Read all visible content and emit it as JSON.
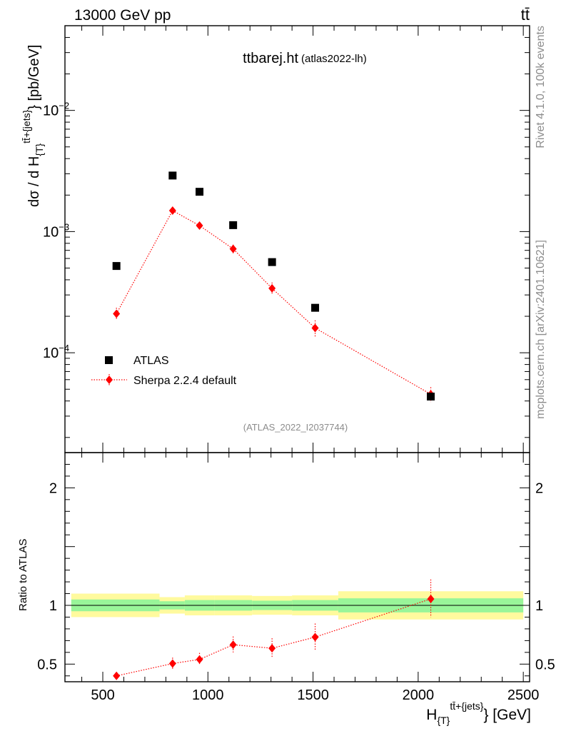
{
  "header": {
    "energy_label": "13000 GeV pp",
    "process_label": "tt̄"
  },
  "side": {
    "rivet_label": "Rivet 4.1.0,  100k events",
    "site_label": "mcplots.cern.ch [arXiv:2401.10621]"
  },
  "chart_data": [
    {
      "type": "scatter",
      "title": "ttbarej.ht",
      "subtitle": "(atlas2022-lh)",
      "watermark": "(ATLAS_2022_I2037744)",
      "ylabel": "dσ / d H_{T}^{tt̄+{jets}} [pb/GeV]",
      "yscale": "log",
      "ylim": [
        1.5e-05,
        0.05
      ],
      "xlim": [
        320,
        2530
      ],
      "y_ticks": [
        {
          "value": 0.01,
          "base": "10",
          "exp": "−2"
        },
        {
          "value": 0.001,
          "base": "10",
          "exp": "−3"
        },
        {
          "value": 0.0001,
          "base": "10",
          "exp": "−4"
        }
      ],
      "legend": {
        "position": "bottom-left",
        "entries": [
          "ATLAS",
          "Sherpa 2.2.4 default"
        ]
      },
      "series": [
        {
          "name": "ATLAS",
          "color": "#000000",
          "marker": "square",
          "x": [
            565,
            832,
            960,
            1120,
            1305,
            1510,
            2060
          ],
          "y": [
            0.00052,
            0.0029,
            0.00213,
            0.00113,
            0.00056,
            0.000235,
            4.35e-05
          ]
        },
        {
          "name": "Sherpa 2.2.4 default",
          "color": "#ff0000",
          "marker": "diamond",
          "line": "dotted",
          "x": [
            565,
            832,
            960,
            1120,
            1305,
            1510,
            2060
          ],
          "y": [
            0.00021,
            0.00149,
            0.00112,
            0.00072,
            0.00034,
            0.00016,
            4.55e-05
          ],
          "y_err_low": [
            0.00019,
            0.00141,
            0.00106,
            0.00066,
            0.0003,
            0.000135,
            3.9e-05
          ],
          "y_err_high": [
            0.000235,
            0.00157,
            0.00119,
            0.00078,
            0.00038,
            0.000185,
            5.2e-05
          ]
        }
      ]
    },
    {
      "type": "scatter",
      "ylabel": "Ratio to ATLAS",
      "xlabel": "H_{T}^{tt̄+{jets}} [GeV]",
      "ylim": [
        0.35,
        2.3
      ],
      "xlim": [
        320,
        2530
      ],
      "x_ticks": [
        500,
        1000,
        1500,
        2000,
        2500
      ],
      "y_ticks": [
        {
          "value": 0.5,
          "label": "0.5"
        },
        {
          "value": 1,
          "label": "1"
        },
        {
          "value": 2,
          "label": "2"
        }
      ],
      "bands": [
        {
          "x_low": 350,
          "x_high": 770,
          "inner": [
            0.95,
            1.05
          ],
          "outer": [
            0.9,
            1.1
          ]
        },
        {
          "x_low": 770,
          "x_high": 890,
          "inner": [
            0.965,
            1.035
          ],
          "outer": [
            0.93,
            1.07
          ]
        },
        {
          "x_low": 890,
          "x_high": 1030,
          "inner": [
            0.955,
            1.045
          ],
          "outer": [
            0.915,
            1.085
          ]
        },
        {
          "x_low": 1030,
          "x_high": 1210,
          "inner": [
            0.955,
            1.045
          ],
          "outer": [
            0.915,
            1.085
          ]
        },
        {
          "x_low": 1210,
          "x_high": 1400,
          "inner": [
            0.96,
            1.04
          ],
          "outer": [
            0.92,
            1.08
          ]
        },
        {
          "x_low": 1400,
          "x_high": 1620,
          "inner": [
            0.955,
            1.045
          ],
          "outer": [
            0.915,
            1.085
          ]
        },
        {
          "x_low": 1620,
          "x_high": 2500,
          "inner": [
            0.94,
            1.06
          ],
          "outer": [
            0.88,
            1.12
          ]
        }
      ],
      "band_colors": {
        "inner": "#99f599",
        "outer": "#fffa9e"
      },
      "series": [
        {
          "name": "Sherpa 2.2.4 default",
          "color": "#ff0000",
          "x": [
            565,
            832,
            960,
            1120,
            1305,
            1510,
            2060
          ],
          "y": [
            0.4,
            0.505,
            0.54,
            0.665,
            0.635,
            0.73,
            1.055
          ],
          "y_err_low": [
            0.37,
            0.455,
            0.49,
            0.6,
            0.55,
            0.62,
            0.9
          ],
          "y_err_high": [
            0.43,
            0.555,
            0.595,
            0.735,
            0.72,
            0.845,
            1.22
          ]
        }
      ]
    }
  ]
}
